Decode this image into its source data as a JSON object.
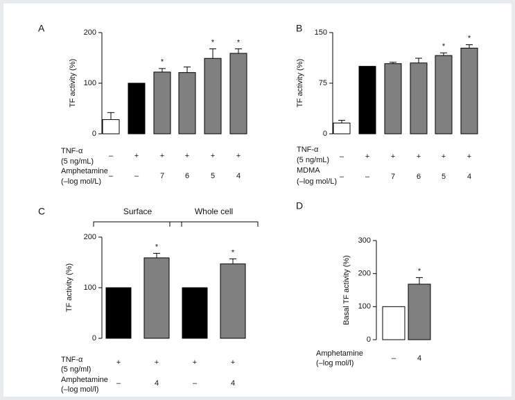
{
  "chart_data": [
    {
      "type": "bar",
      "panel_label": "A",
      "y_label": "TF activity (%)",
      "ylim": [
        0,
        200
      ],
      "yticks": [
        0,
        100,
        200
      ],
      "values": [
        28,
        100,
        122,
        121,
        149,
        159
      ],
      "errors": [
        14,
        null,
        7,
        11,
        19,
        9
      ],
      "colors": [
        "#ffffff",
        "#000000",
        "#808080",
        "#808080",
        "#808080",
        "#808080"
      ],
      "star_labels": [
        null,
        null,
        "*",
        null,
        "*",
        "*"
      ],
      "rows": [
        {
          "label": [
            "TNF-α",
            "(5 ng/mL)"
          ],
          "cells": [
            "–",
            "+",
            "+",
            "+",
            "+",
            "+"
          ]
        },
        {
          "label": [
            "Amphetamine",
            "(–log mol/L)"
          ],
          "cells": [
            "–",
            "–",
            7,
            6,
            5,
            4
          ]
        }
      ]
    },
    {
      "type": "bar",
      "panel_label": "B",
      "y_label": "TF activity (%)",
      "ylim": [
        0,
        150
      ],
      "yticks": [
        0,
        75,
        150
      ],
      "values": [
        16,
        100,
        104,
        105,
        116,
        127
      ],
      "errors": [
        4,
        null,
        2,
        7,
        4,
        5
      ],
      "colors": [
        "#ffffff",
        "#000000",
        "#808080",
        "#808080",
        "#808080",
        "#808080"
      ],
      "star_labels": [
        null,
        null,
        null,
        null,
        "*",
        "*"
      ],
      "rows": [
        {
          "label": [
            "TNF-α",
            "(5 ng/mL)"
          ],
          "cells": [
            "–",
            "+",
            "+",
            "+",
            "+",
            "+"
          ]
        },
        {
          "label": [
            "MDMA",
            "(–log mol/L)"
          ],
          "cells": [
            "–",
            "–",
            7,
            6,
            5,
            4
          ]
        }
      ]
    },
    {
      "type": "bar",
      "panel_label": "C",
      "y_label": "TF activity (%)",
      "ylim": [
        0,
        200
      ],
      "yticks": [
        0,
        100,
        200
      ],
      "group_labels": [
        "Surface",
        "Whole cell"
      ],
      "values": [
        100,
        159,
        100,
        147
      ],
      "errors": [
        null,
        9,
        null,
        10
      ],
      "colors": [
        "#000000",
        "#808080",
        "#000000",
        "#808080"
      ],
      "star_labels": [
        null,
        "*",
        null,
        "*"
      ],
      "rows": [
        {
          "label": [
            "TNF-α",
            "(5 ng/ml)"
          ],
          "cells": [
            "+",
            "+",
            "+",
            "+"
          ]
        },
        {
          "label": [
            "Amphetamine",
            "(–log mol/l)"
          ],
          "cells": [
            "–",
            4,
            "–",
            4
          ]
        }
      ]
    },
    {
      "type": "bar",
      "panel_label": "D",
      "y_label": "Basal TF activity (%)",
      "ylim": [
        0,
        300
      ],
      "yticks": [
        0,
        100,
        200,
        300
      ],
      "values": [
        100,
        168
      ],
      "errors": [
        null,
        20
      ],
      "colors": [
        "#ffffff",
        "#808080"
      ],
      "star_labels": [
        null,
        "*"
      ],
      "rows": [
        {
          "label": [
            "Amphetamine",
            "(–log mol/l)"
          ],
          "cells": [
            "–",
            4
          ]
        }
      ]
    }
  ]
}
